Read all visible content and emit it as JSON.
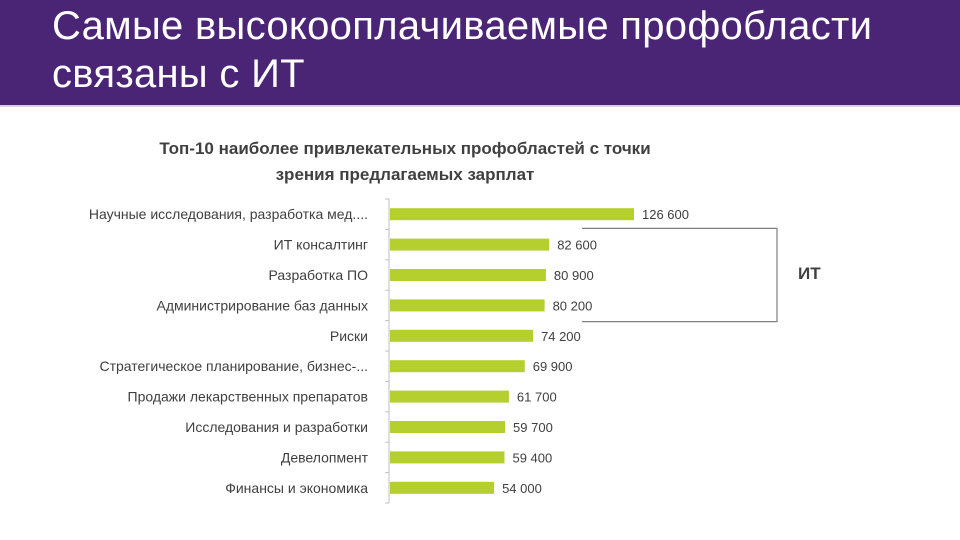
{
  "slide": {
    "title_line1": "Самые высокооплачиваемые профобласти",
    "title_line2": "связаны с ИТ",
    "header_color": "#4a2575"
  },
  "chart_data": {
    "type": "bar",
    "orientation": "horizontal",
    "title_line1": "Топ-10 наиболее привлекательных профобластей с точки",
    "title_line2": "зрения предлагаемых зарплат",
    "categories": [
      "Научные исследования, разработка мед....",
      "ИТ консалтинг",
      "Разработка ПО",
      "Администрирование баз данных",
      "Риски",
      "Стратегическое планирование, бизнес-...",
      "Продажи лекарственных препаратов",
      "Исследования и разработки",
      "Девелопмент",
      "Финансы и экономика"
    ],
    "values": [
      126600,
      82600,
      80900,
      80200,
      74200,
      69900,
      61700,
      59700,
      59400,
      54000
    ],
    "value_labels": [
      "126 600",
      "82 600",
      "80 900",
      "80 200",
      "74 200",
      "69 900",
      "61 700",
      "59 700",
      "59 400",
      "54 000"
    ],
    "bar_color": "#b5cf2e",
    "xlim": [
      0,
      126600
    ],
    "grid": false,
    "annotation": {
      "label": "ИТ",
      "covers_categories": [
        1,
        2,
        3
      ]
    }
  }
}
